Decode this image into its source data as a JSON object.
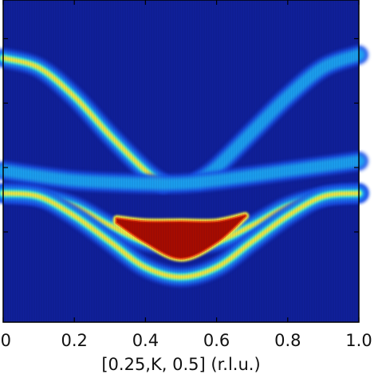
{
  "chart_data": {
    "type": "heatmap",
    "title": "",
    "xlabel": "[0.25,K, 0.5] (r.l.u.)",
    "ylabel": "",
    "xlim": [
      0.0,
      1.0
    ],
    "ylim": [
      0.0,
      1.0
    ],
    "x_ticks": [
      {
        "value": 0.0,
        "label": ".0"
      },
      {
        "value": 0.2,
        "label": "0.2"
      },
      {
        "value": 0.4,
        "label": "0.4"
      },
      {
        "value": 0.6,
        "label": "0.6"
      },
      {
        "value": 0.8,
        "label": "0.8"
      },
      {
        "value": 1.0,
        "label": "1.0"
      }
    ],
    "y_tick_values": [
      0.28,
      0.48,
      0.68,
      0.88
    ],
    "colormap": "jet",
    "background_color": "#10209a",
    "grid": false,
    "series": [
      {
        "x": [
          0.0,
          0.1,
          0.2,
          0.3,
          0.4,
          0.45
        ],
        "y": [
          0.82,
          0.79,
          0.7,
          0.58,
          0.47,
          0.43
        ],
        "intensity": 0.7
      },
      {
        "x": [
          0.55,
          0.6,
          0.7,
          0.8,
          0.9,
          1.0
        ],
        "y": [
          0.44,
          0.48,
          0.59,
          0.7,
          0.79,
          0.83
        ],
        "intensity": 0.45
      },
      {
        "x": [
          0.0,
          0.2,
          0.4,
          0.5,
          0.6,
          0.8,
          1.0
        ],
        "y": [
          0.47,
          0.44,
          0.43,
          0.43,
          0.44,
          0.47,
          0.5
        ],
        "intensity": 0.45
      },
      {
        "x": [
          0.0,
          0.1,
          0.2,
          0.3,
          0.4,
          0.5,
          0.6,
          0.7,
          0.8,
          0.9,
          1.0
        ],
        "y": [
          0.4,
          0.39,
          0.36,
          0.3,
          0.25,
          0.24,
          0.25,
          0.3,
          0.36,
          0.39,
          0.4
        ],
        "intensity": 0.75
      },
      {
        "x": [
          0.0,
          0.1,
          0.2,
          0.3,
          0.4,
          0.5,
          0.6,
          0.7,
          0.8,
          0.9,
          1.0
        ],
        "y": [
          0.4,
          0.39,
          0.33,
          0.25,
          0.17,
          0.14,
          0.17,
          0.25,
          0.33,
          0.39,
          0.4
        ],
        "intensity": 0.85
      }
    ],
    "hot_region": {
      "x": [
        0.32,
        0.4,
        0.5,
        0.6,
        0.68
      ],
      "y_upper": [
        0.32,
        0.31,
        0.31,
        0.31,
        0.33
      ],
      "y_lower": [
        0.31,
        0.25,
        0.2,
        0.25,
        0.33
      ],
      "intensity": 1.0
    }
  }
}
